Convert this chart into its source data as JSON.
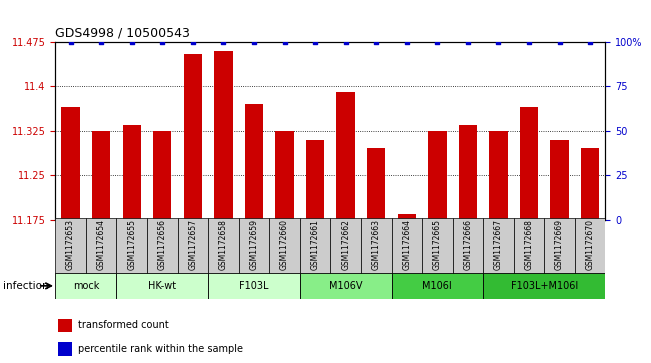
{
  "title": "GDS4998 / 10500543",
  "samples": [
    "GSM1172653",
    "GSM1172654",
    "GSM1172655",
    "GSM1172656",
    "GSM1172657",
    "GSM1172658",
    "GSM1172659",
    "GSM1172660",
    "GSM1172661",
    "GSM1172662",
    "GSM1172663",
    "GSM1172664",
    "GSM1172665",
    "GSM1172666",
    "GSM1172667",
    "GSM1172668",
    "GSM1172669",
    "GSM1172670"
  ],
  "bar_values": [
    11.365,
    11.325,
    11.335,
    11.325,
    11.455,
    11.46,
    11.37,
    11.325,
    11.31,
    11.39,
    11.295,
    11.185,
    11.325,
    11.335,
    11.325,
    11.365,
    11.31,
    11.295
  ],
  "percentile_values": [
    100,
    100,
    100,
    100,
    100,
    100,
    100,
    100,
    100,
    100,
    100,
    100,
    100,
    100,
    100,
    100,
    100,
    100
  ],
  "bar_color": "#cc0000",
  "percentile_color": "#0000cc",
  "ylim_left": [
    11.175,
    11.475
  ],
  "ylim_right": [
    0,
    100
  ],
  "yticks_left": [
    11.175,
    11.25,
    11.325,
    11.4,
    11.475
  ],
  "yticks_right": [
    0,
    25,
    50,
    75,
    100
  ],
  "ytick_labels_left": [
    "11.175",
    "11.25",
    "11.325",
    "11.4",
    "11.475"
  ],
  "ytick_labels_right": [
    "0",
    "25",
    "50",
    "75",
    "100%"
  ],
  "groups": [
    {
      "label": "mock",
      "start": 0,
      "end": 2,
      "color": "#ccffcc"
    },
    {
      "label": "HK-wt",
      "start": 2,
      "end": 5,
      "color": "#ccffcc"
    },
    {
      "label": "F103L",
      "start": 5,
      "end": 8,
      "color": "#ccffcc"
    },
    {
      "label": "M106V",
      "start": 8,
      "end": 11,
      "color": "#88ee88"
    },
    {
      "label": "M106I",
      "start": 11,
      "end": 14,
      "color": "#44cc44"
    },
    {
      "label": "F103L+M106I",
      "start": 14,
      "end": 18,
      "color": "#33bb33"
    }
  ],
  "infection_label": "infection",
  "legend_items": [
    {
      "color": "#cc0000",
      "label": "transformed count"
    },
    {
      "color": "#0000cc",
      "label": "percentile rank within the sample"
    }
  ],
  "grid_color": "#888888",
  "cell_color": "#cccccc",
  "bar_width": 0.6,
  "title_fontsize": 9,
  "tick_fontsize": 7,
  "sample_fontsize": 5.5,
  "group_fontsize": 7,
  "legend_fontsize": 7
}
